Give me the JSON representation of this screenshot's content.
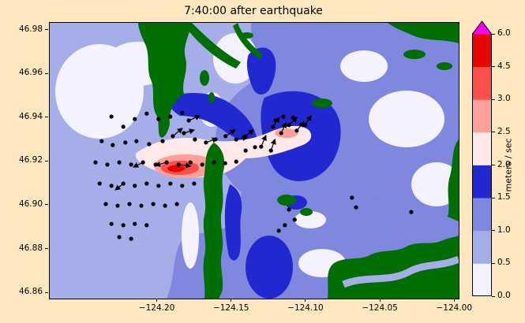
{
  "figure": {
    "title": "7:40:00 after earthquake",
    "background_color": "#ffe8bf"
  },
  "chart_data": {
    "type": "heatmap",
    "title": "7:40:00 after earthquake",
    "xlabel": "",
    "ylabel": "",
    "grid": false,
    "x_axis": {
      "lim": [
        -124.2725,
        -123.9975
      ],
      "ticks": [
        -124.2,
        -124.15,
        -124.1,
        -124.05,
        -124.0
      ],
      "tick_labels": [
        "−124.20",
        "−124.15",
        "−124.10",
        "−124.05",
        "−124.00"
      ]
    },
    "y_axis": {
      "lim": [
        46.8575,
        46.9835
      ],
      "ticks": [
        46.98,
        46.96,
        46.94,
        46.92,
        46.9,
        46.88,
        46.86
      ],
      "tick_labels": [
        "46.98",
        "46.96",
        "46.94",
        "46.92",
        "46.90",
        "46.88",
        "46.86"
      ]
    },
    "colorbar": {
      "label": "meters / sec",
      "units": "meters / sec",
      "levels": [
        0.0,
        0.5,
        1.0,
        1.5,
        2.0,
        2.5,
        3.0,
        4.5,
        6.0
      ],
      "tick_labels": [
        "0.0",
        "0.5",
        "1.0",
        "1.5",
        "2.0",
        "2.5",
        "3.0",
        "4.5",
        "6.0"
      ],
      "band_colors": [
        "#f4f2ff",
        "#a6aeea",
        "#7f88de",
        "#2228d0",
        "#ffe9e8",
        "#ff9f9a",
        "#fa4f4a",
        "#e60800"
      ],
      "over_color": "#f400f4",
      "spacing": "uniform",
      "extend": "max"
    },
    "map_colors": {
      "land": "#006e00",
      "ocean_base": "#a6aeea"
    },
    "stations": {
      "color": "#000000",
      "points": [
        [
          0.151,
          0.34
        ],
        [
          0.18,
          0.377
        ],
        [
          0.208,
          0.349
        ],
        [
          0.237,
          0.329
        ],
        [
          0.266,
          0.349
        ],
        [
          0.295,
          0.34
        ],
        [
          0.324,
          0.326
        ],
        [
          0.34,
          0.354
        ],
        [
          0.127,
          0.429
        ],
        [
          0.154,
          0.443
        ],
        [
          0.185,
          0.434
        ],
        [
          0.212,
          0.429
        ],
        [
          0.243,
          0.44
        ],
        [
          0.276,
          0.429
        ],
        [
          0.301,
          0.411
        ],
        [
          0.328,
          0.4
        ],
        [
          0.355,
          0.423
        ],
        [
          0.382,
          0.434
        ],
        [
          0.405,
          0.423
        ],
        [
          0.43,
          0.411
        ],
        [
          0.456,
          0.423
        ],
        [
          0.479,
          0.411
        ],
        [
          0.112,
          0.506
        ],
        [
          0.141,
          0.514
        ],
        [
          0.17,
          0.506
        ],
        [
          0.199,
          0.514
        ],
        [
          0.228,
          0.506
        ],
        [
          0.259,
          0.514
        ],
        [
          0.286,
          0.506
        ],
        [
          0.315,
          0.514
        ],
        [
          0.344,
          0.506
        ],
        [
          0.373,
          0.514
        ],
        [
          0.402,
          0.506
        ],
        [
          0.429,
          0.509
        ],
        [
          0.456,
          0.503
        ],
        [
          0.122,
          0.583
        ],
        [
          0.151,
          0.591
        ],
        [
          0.18,
          0.583
        ],
        [
          0.208,
          0.591
        ],
        [
          0.237,
          0.583
        ],
        [
          0.266,
          0.591
        ],
        [
          0.295,
          0.583
        ],
        [
          0.324,
          0.591
        ],
        [
          0.353,
          0.583
        ],
        [
          0.137,
          0.657
        ],
        [
          0.166,
          0.663
        ],
        [
          0.195,
          0.657
        ],
        [
          0.224,
          0.663
        ],
        [
          0.253,
          0.657
        ],
        [
          0.282,
          0.663
        ],
        [
          0.311,
          0.657
        ],
        [
          0.151,
          0.729
        ],
        [
          0.18,
          0.734
        ],
        [
          0.208,
          0.729
        ],
        [
          0.237,
          0.734
        ],
        [
          0.17,
          0.777
        ],
        [
          0.199,
          0.783
        ],
        [
          0.546,
          0.377
        ],
        [
          0.566,
          0.4
        ],
        [
          0.585,
          0.371
        ],
        [
          0.604,
          0.391
        ],
        [
          0.624,
          0.371
        ],
        [
          0.595,
          0.343
        ],
        [
          0.571,
          0.34
        ],
        [
          0.552,
          0.354
        ],
        [
          0.517,
          0.449
        ],
        [
          0.541,
          0.463
        ],
        [
          0.479,
          0.463
        ],
        [
          0.502,
          0.451
        ],
        [
          0.585,
          0.677
        ],
        [
          0.599,
          0.714
        ],
        [
          0.575,
          0.734
        ],
        [
          0.56,
          0.754
        ],
        [
          0.739,
          0.634
        ],
        [
          0.749,
          0.669
        ],
        [
          0.884,
          0.686
        ]
      ]
    },
    "velocity_arrows": [
      [
        0.34,
        0.354,
        14,
        -6
      ],
      [
        0.301,
        0.411,
        12,
        -10
      ],
      [
        0.328,
        0.4,
        13,
        -4
      ],
      [
        0.382,
        0.434,
        14,
        -5
      ],
      [
        0.43,
        0.411,
        12,
        -8
      ],
      [
        0.456,
        0.423,
        14,
        -3
      ],
      [
        0.479,
        0.411,
        10,
        -8
      ],
      [
        0.546,
        0.377,
        8,
        -12
      ],
      [
        0.566,
        0.4,
        6,
        -13
      ],
      [
        0.585,
        0.371,
        10,
        -10
      ],
      [
        0.604,
        0.391,
        9,
        -11
      ],
      [
        0.624,
        0.371,
        8,
        -12
      ],
      [
        0.286,
        0.506,
        -14,
        4
      ],
      [
        0.228,
        0.506,
        -12,
        6
      ],
      [
        0.18,
        0.583,
        -10,
        8
      ],
      [
        0.315,
        0.514,
        15,
        2
      ],
      [
        0.517,
        0.449,
        6,
        -14
      ],
      [
        0.541,
        0.463,
        5,
        -14
      ]
    ]
  }
}
